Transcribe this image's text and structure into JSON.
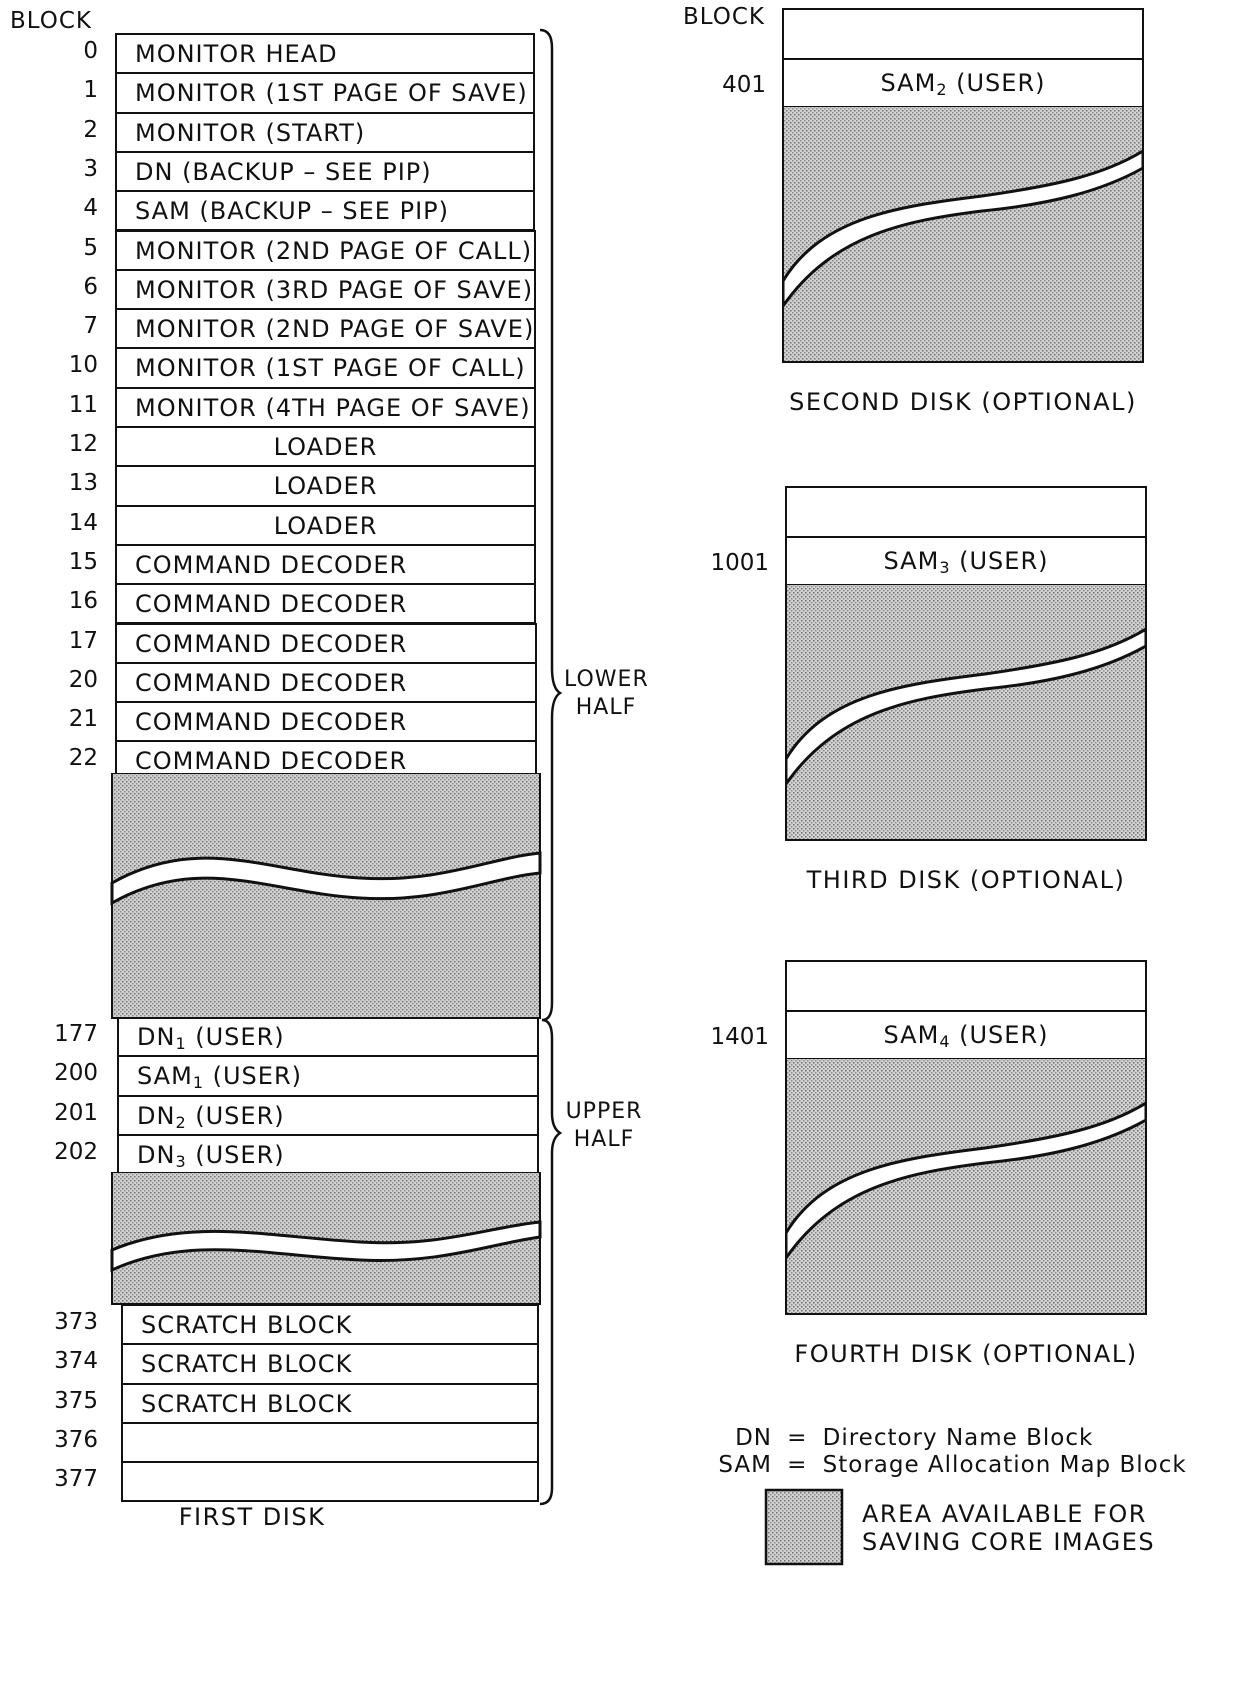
{
  "first_disk": {
    "header": "BLOCK",
    "caption": "FIRST DISK",
    "rows": [
      {
        "block": "0",
        "label": "MONITOR HEAD",
        "align": "left"
      },
      {
        "block": "1",
        "label": "MONITOR (1ST PAGE OF SAVE)",
        "align": "left"
      },
      {
        "block": "2",
        "label": "MONITOR (START)",
        "align": "left"
      },
      {
        "block": "3",
        "label": "DN (BACKUP – SEE PIP)",
        "align": "left"
      },
      {
        "block": "4",
        "label": "SAM (BACKUP – SEE PIP)",
        "align": "left"
      },
      {
        "block": "5",
        "label": "MONITOR (2ND PAGE OF CALL)",
        "align": "left"
      },
      {
        "block": "6",
        "label": "MONITOR (3RD PAGE OF SAVE)",
        "align": "left"
      },
      {
        "block": "7",
        "label": "MONITOR (2ND PAGE OF SAVE)",
        "align": "left"
      },
      {
        "block": "10",
        "label": "MONITOR (1ST PAGE OF CALL)",
        "align": "left"
      },
      {
        "block": "11",
        "label": "MONITOR (4TH PAGE OF SAVE)",
        "align": "left"
      },
      {
        "block": "12",
        "label": "LOADER",
        "align": "center"
      },
      {
        "block": "13",
        "label": "LOADER",
        "align": "center"
      },
      {
        "block": "14",
        "label": "LOADER",
        "align": "center"
      },
      {
        "block": "15",
        "label": "COMMAND DECODER",
        "align": "left"
      },
      {
        "block": "16",
        "label": "COMMAND DECODER",
        "align": "left"
      },
      {
        "block": "17",
        "label": "COMMAND DECODER",
        "align": "left"
      },
      {
        "block": "20",
        "label": "COMMAND DECODER",
        "align": "left"
      },
      {
        "block": "21",
        "label": "COMMAND DECODER",
        "align": "left"
      },
      {
        "block": "22",
        "label": "COMMAND DECODER",
        "align": "left"
      }
    ],
    "user_rows": [
      {
        "block": "177",
        "label_main": "DN",
        "label_sub": "1",
        "label_tail": " (USER)"
      },
      {
        "block": "200",
        "label_main": "SAM",
        "label_sub": "1",
        "label_tail": " (USER)"
      },
      {
        "block": "201",
        "label_main": "DN",
        "label_sub": "2",
        "label_tail": " (USER)"
      },
      {
        "block": "202",
        "label_main": "DN",
        "label_sub": "3",
        "label_tail": " (USER)"
      }
    ],
    "scratch_rows": [
      {
        "block": "373",
        "label": "SCRATCH BLOCK"
      },
      {
        "block": "374",
        "label": "SCRATCH BLOCK"
      },
      {
        "block": "375",
        "label": "SCRATCH BLOCK"
      },
      {
        "block": "376",
        "label": ""
      },
      {
        "block": "377",
        "label": ""
      }
    ],
    "lower_half_label": [
      "LOWER",
      "HALF"
    ],
    "upper_half_label": [
      "UPPER",
      "HALF"
    ]
  },
  "other_disks": {
    "header": "BLOCK",
    "disks": [
      {
        "block": "401",
        "sam_main": "SAM",
        "sam_sub": "2",
        "sam_tail": " (USER)",
        "caption": "SECOND DISK (OPTIONAL)"
      },
      {
        "block": "1001",
        "sam_main": "SAM",
        "sam_sub": "3",
        "sam_tail": " (USER)",
        "caption": "THIRD DISK (OPTIONAL)"
      },
      {
        "block": "1401",
        "sam_main": "SAM",
        "sam_sub": "4",
        "sam_tail": " (USER)",
        "caption": "FOURTH DISK (OPTIONAL)"
      }
    ]
  },
  "legend": {
    "dn_abbr": "DN",
    "dn_eq": "=",
    "dn_text": "Directory Name Block",
    "sam_abbr": "SAM",
    "sam_eq": "=",
    "sam_text": "Storage Allocation Map Block",
    "area_text": [
      "AREA AVAILABLE FOR",
      "SAVING CORE IMAGES"
    ]
  },
  "colors": {
    "line": "#111111",
    "shade": "#c8c8c8",
    "paper": "#ffffff"
  }
}
